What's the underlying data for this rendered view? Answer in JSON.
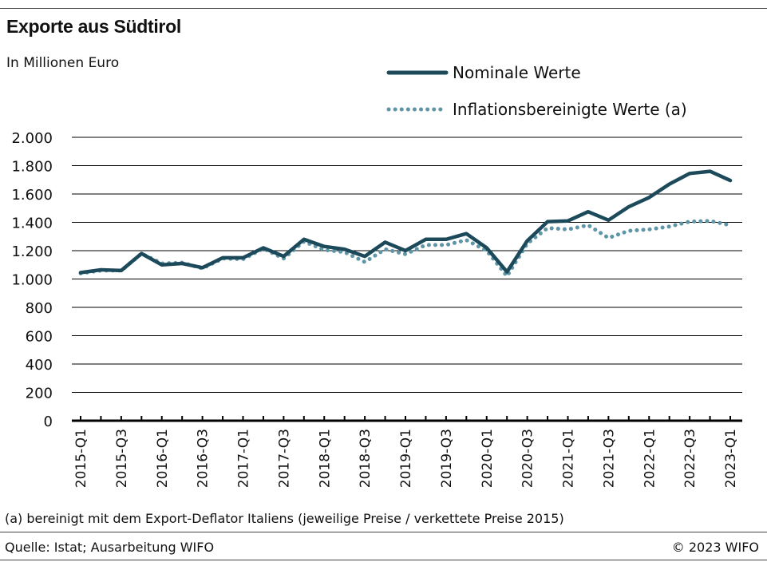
{
  "header": {
    "title": "Exporte aus Südtirol",
    "subtitle": "In Millionen Euro"
  },
  "footer": {
    "note": "(a) bereinigt mit dem Export-Deflator Italiens (jeweilige Preise / verkettete Preise 2015)",
    "source": "Quelle: Istat; Ausarbeitung WIFO",
    "copyright": "© 2023 WIFO"
  },
  "colors": {
    "nominal": "#1c4a5a",
    "real": "#5e96a8",
    "grid": "#000000",
    "text": "#111111"
  },
  "chart_data": {
    "type": "line",
    "xlabel": "",
    "ylabel": "",
    "ylim": [
      0,
      2000
    ],
    "yticks": [
      0,
      200,
      400,
      600,
      800,
      1000,
      1200,
      1400,
      1600,
      1800,
      2000
    ],
    "ytick_labels": [
      "0",
      "200",
      "400",
      "600",
      "800",
      "1.000",
      "1.200",
      "1.400",
      "1.600",
      "1.800",
      "2.000"
    ],
    "grid": true,
    "legend": "top-right",
    "x": [
      "2015-Q1",
      "2015-Q2",
      "2015-Q3",
      "2015-Q4",
      "2016-Q1",
      "2016-Q2",
      "2016-Q3",
      "2016-Q4",
      "2017-Q1",
      "2017-Q2",
      "2017-Q3",
      "2017-Q4",
      "2018-Q1",
      "2018-Q2",
      "2018-Q3",
      "2018-Q4",
      "2019-Q1",
      "2019-Q2",
      "2019-Q3",
      "2019-Q4",
      "2020-Q1",
      "2020-Q2",
      "2020-Q3",
      "2020-Q4",
      "2021-Q1",
      "2021-Q2",
      "2021-Q3",
      "2021-Q4",
      "2022-Q1",
      "2022-Q2",
      "2022-Q3",
      "2022-Q4",
      "2023-Q1"
    ],
    "x_tick_labels": [
      "2015-Q1",
      "2015-Q3",
      "2016-Q1",
      "2016-Q3",
      "2017-Q1",
      "2017-Q3",
      "2018-Q1",
      "2018-Q3",
      "2019-Q1",
      "2019-Q3",
      "2020-Q1",
      "2020-Q3",
      "2021-Q1",
      "2021-Q3",
      "2022-Q1",
      "2022-Q3",
      "2023-Q1"
    ],
    "series": [
      {
        "name": "Nominale Werte",
        "style": "solid",
        "values": [
          1045,
          1065,
          1060,
          1180,
          1100,
          1110,
          1080,
          1150,
          1150,
          1220,
          1160,
          1280,
          1230,
          1210,
          1160,
          1260,
          1200,
          1280,
          1280,
          1320,
          1220,
          1050,
          1270,
          1405,
          1410,
          1475,
          1415,
          1510,
          1575,
          1670,
          1745,
          1760,
          1695
        ]
      },
      {
        "name": "Inflationsbereinigte Werte (a)",
        "style": "dotted",
        "values": [
          1040,
          1060,
          1060,
          1180,
          1110,
          1115,
          1075,
          1145,
          1140,
          1215,
          1145,
          1265,
          1205,
          1190,
          1120,
          1210,
          1175,
          1240,
          1240,
          1275,
          1200,
          1020,
          1250,
          1360,
          1350,
          1380,
          1290,
          1340,
          1350,
          1370,
          1405,
          1410,
          1380
        ]
      }
    ]
  }
}
